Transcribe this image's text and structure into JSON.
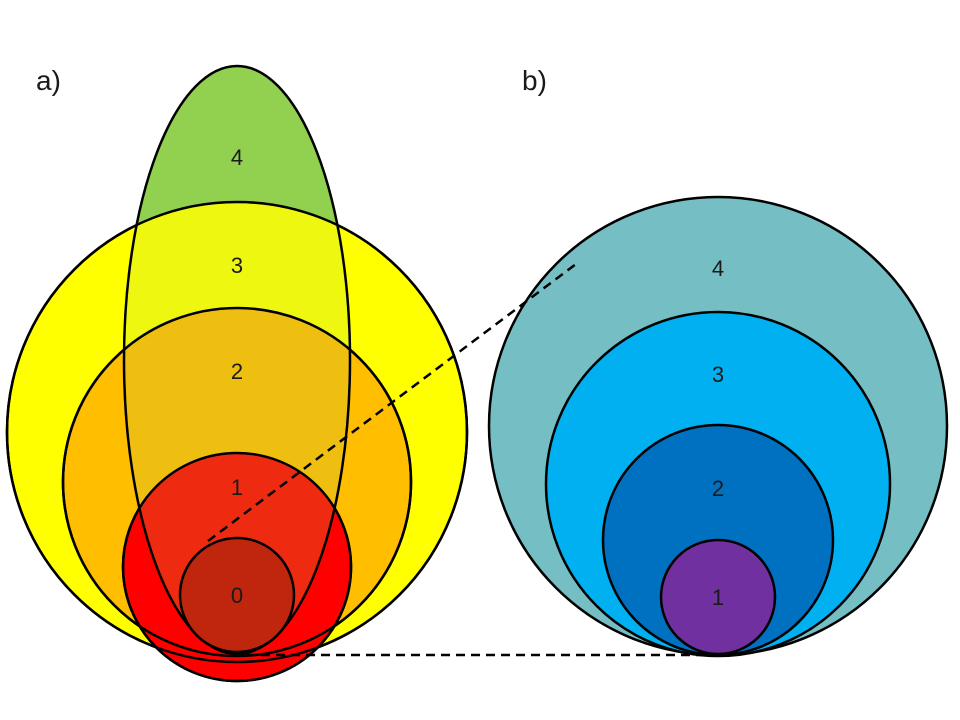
{
  "panels": {
    "a": {
      "label": "a)",
      "levels": [
        "0",
        "1",
        "2",
        "3",
        "4"
      ],
      "colors": {
        "circle_3": "#ffff00",
        "circle_2": "#ffbf00",
        "circle_1": "#ff0000",
        "circle_0": "#c0260d",
        "ellipse_4": "#92d050",
        "overlap_3": "#eef70f",
        "overlap_2": "#eebf10",
        "overlap_1": "#ee2a10"
      }
    },
    "b": {
      "label": "b)",
      "levels": [
        "1",
        "2",
        "3",
        "4"
      ],
      "colors": {
        "circle_4": "#74bec4",
        "circle_3": "#00b0f0",
        "circle_2": "#0070c0",
        "circle_1": "#7030a0"
      }
    }
  }
}
